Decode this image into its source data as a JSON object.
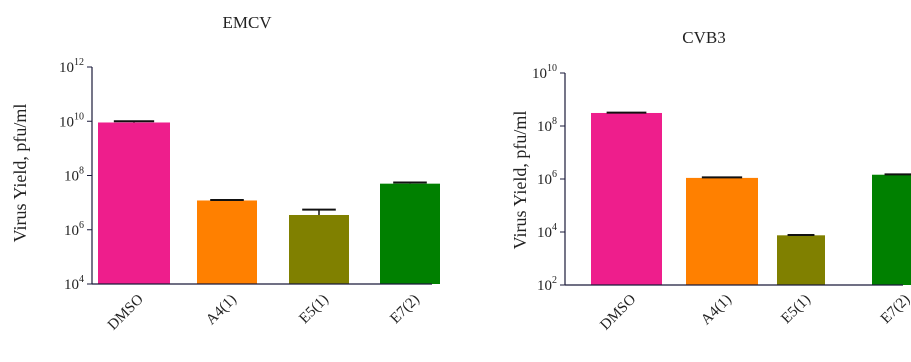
{
  "chart_data": [
    {
      "type": "bar",
      "title": "EMCV",
      "ylabel": "Virus Yield, pfu/ml",
      "xlabel": "",
      "yscale": "log",
      "ylim": [
        10000,
        1000000000000
      ],
      "yticks": [
        {
          "base": "10",
          "exp": "4"
        },
        {
          "base": "10",
          "exp": "6"
        },
        {
          "base": "10",
          "exp": "8"
        },
        {
          "base": "10",
          "exp": "10"
        },
        {
          "base": "10",
          "exp": "12"
        }
      ],
      "categories": [
        "DMSO",
        "A4(1)",
        "E5(1)",
        "E7(2)"
      ],
      "values": [
        9000000000,
        12000000,
        3500000,
        50000000
      ],
      "error_upper": [
        10000000000,
        12500000,
        5500000,
        55000000
      ],
      "colors": [
        "#ee1e8c",
        "#ff8000",
        "#808000",
        "#008000"
      ]
    },
    {
      "type": "bar",
      "title": "CVB3",
      "ylabel": "Virus Yield, pfu/ml",
      "xlabel": "",
      "yscale": "log",
      "ylim": [
        100,
        10000000000
      ],
      "yticks": [
        {
          "base": "10",
          "exp": "2"
        },
        {
          "base": "10",
          "exp": "4"
        },
        {
          "base": "10",
          "exp": "6"
        },
        {
          "base": "10",
          "exp": "8"
        },
        {
          "base": "10",
          "exp": "10"
        }
      ],
      "categories": [
        "DMSO",
        "A4(1)",
        "E5(1)",
        "E7(2)"
      ],
      "values": [
        310000000,
        1100000,
        7500,
        1450000
      ],
      "error_upper": [
        320000000,
        1150000,
        7700,
        1500000
      ],
      "colors": [
        "#ee1e8c",
        "#ff8000",
        "#808000",
        "#008000"
      ]
    }
  ]
}
